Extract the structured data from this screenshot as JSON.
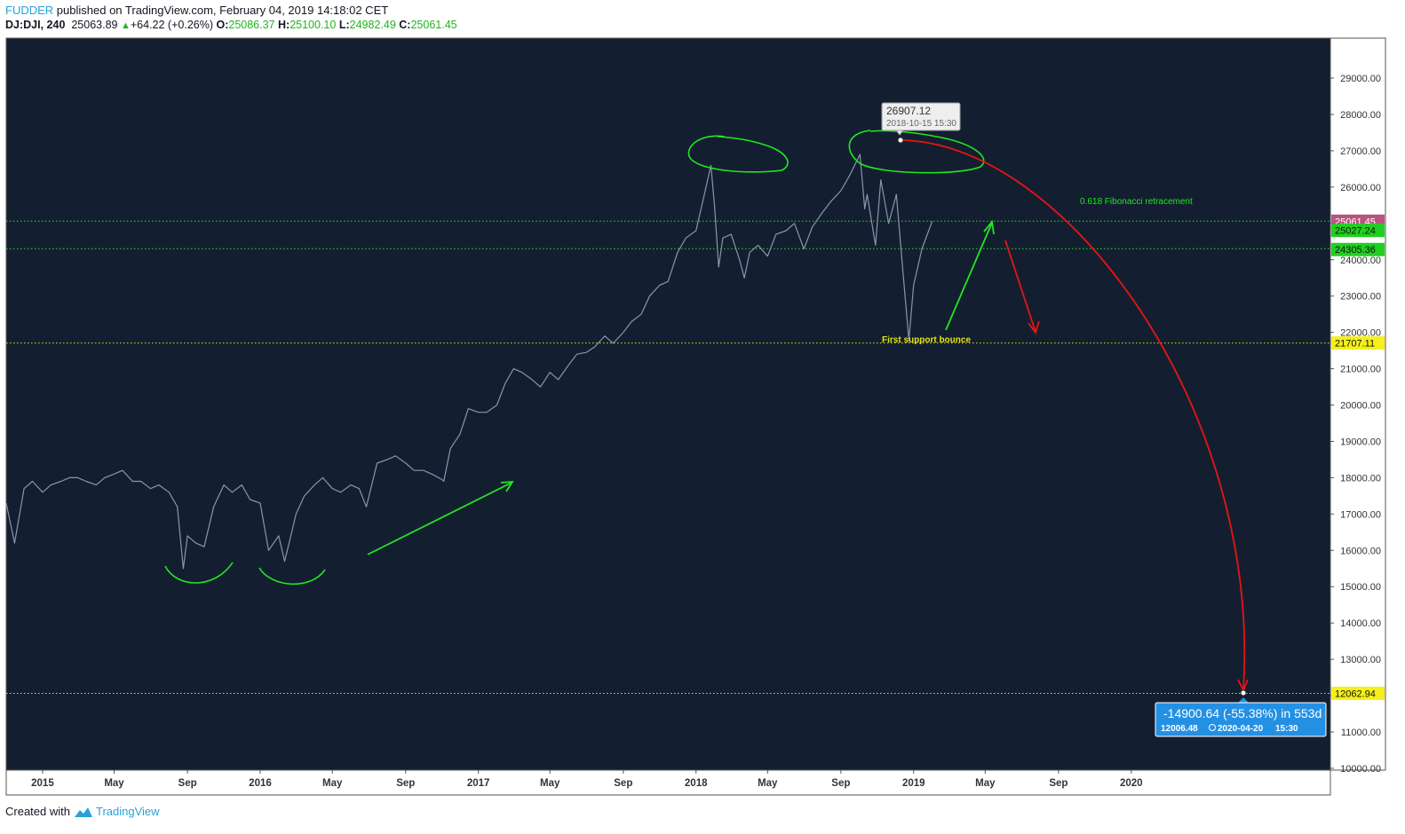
{
  "header": {
    "author": "FUDDER",
    "published_text": "published on TradingView.com, February 04, 2019 14:18:02 CET",
    "symbol": "DJ:DJI, 240",
    "last": "25063.89",
    "change": "+64.22 (+0.26%)",
    "open_label": "O:",
    "open": "25086.37",
    "high_label": "H:",
    "high": "25100.10",
    "low_label": "L:",
    "low": "24982.49",
    "close_label": "C:",
    "close": "25061.45"
  },
  "footer": {
    "created_with": "Created with",
    "brand": "TradingView"
  },
  "colors": {
    "background": "#131f30",
    "price_line": "#8a94ad",
    "green": "#22e622",
    "red": "#e81414",
    "yellow": "#e3e310",
    "label_purple": "#b8557f",
    "label_green": "#20d020",
    "label_yellow": "#f5ef1c",
    "measure_blue": "#2490e4"
  },
  "chart_data": {
    "type": "line",
    "series": [
      {
        "x": [
          "2014-11-01",
          "2014-11-15",
          "2014-12-01",
          "2014-12-15",
          "2015-01-01",
          "2015-01-15",
          "2015-02-01",
          "2015-02-15",
          "2015-03-01",
          "2015-03-15",
          "2015-04-01",
          "2015-04-15",
          "2015-05-01",
          "2015-05-15",
          "2015-06-01",
          "2015-06-15",
          "2015-07-01",
          "2015-07-15",
          "2015-08-01",
          "2015-08-15",
          "2015-08-25",
          "2015-09-01",
          "2015-09-15",
          "2015-09-29",
          "2015-10-15",
          "2015-11-01",
          "2015-11-15",
          "2015-12-01",
          "2015-12-15",
          "2016-01-01",
          "2016-01-15",
          "2016-02-01",
          "2016-02-11",
          "2016-02-20",
          "2016-03-01",
          "2016-03-15",
          "2016-04-01",
          "2016-04-15",
          "2016-05-01",
          "2016-05-15",
          "2016-06-01",
          "2016-06-15",
          "2016-06-27",
          "2016-07-15",
          "2016-08-01",
          "2016-08-15",
          "2016-09-01",
          "2016-09-15",
          "2016-10-01",
          "2016-10-15",
          "2016-11-01",
          "2016-11-04",
          "2016-11-15",
          "2016-12-01",
          "2016-12-15",
          "2017-01-01",
          "2017-01-15",
          "2017-02-01",
          "2017-02-15",
          "2017-03-01",
          "2017-03-15",
          "2017-04-01",
          "2017-04-15",
          "2017-05-01",
          "2017-05-15",
          "2017-06-01",
          "2017-06-15",
          "2017-07-01",
          "2017-07-15",
          "2017-08-01",
          "2017-08-15",
          "2017-09-01",
          "2017-09-15",
          "2017-10-01",
          "2017-10-15",
          "2017-11-01",
          "2017-11-15",
          "2017-12-01",
          "2017-12-15",
          "2018-01-01",
          "2018-01-15",
          "2018-01-26",
          "2018-02-01",
          "2018-02-08",
          "2018-02-15",
          "2018-03-01",
          "2018-03-15",
          "2018-03-23",
          "2018-04-01",
          "2018-04-15",
          "2018-05-01",
          "2018-05-15",
          "2018-06-01",
          "2018-06-15",
          "2018-07-01",
          "2018-07-15",
          "2018-08-01",
          "2018-08-15",
          "2018-09-01",
          "2018-09-15",
          "2018-10-03",
          "2018-10-11",
          "2018-10-15",
          "2018-10-29",
          "2018-11-07",
          "2018-11-20",
          "2018-12-03",
          "2018-12-15",
          "2018-12-24",
          "2019-01-01",
          "2019-01-15",
          "2019-02-01"
        ],
        "y": [
          17300,
          16200,
          17700,
          17900,
          17600,
          17800,
          17900,
          18000,
          18000,
          17900,
          17800,
          18000,
          18100,
          18200,
          17900,
          17900,
          17700,
          17800,
          17600,
          17200,
          15500,
          16400,
          16200,
          16100,
          17200,
          17800,
          17600,
          17800,
          17400,
          17300,
          16000,
          16400,
          15700,
          16300,
          17000,
          17500,
          17800,
          18000,
          17700,
          17600,
          17800,
          17700,
          17200,
          18400,
          18500,
          18600,
          18400,
          18200,
          18200,
          18100,
          17950,
          17900,
          18800,
          19200,
          19900,
          19800,
          19800,
          20000,
          20600,
          21000,
          20900,
          20700,
          20500,
          20900,
          20700,
          21100,
          21400,
          21450,
          21600,
          21900,
          21700,
          22000,
          22300,
          22500,
          23000,
          23300,
          23400,
          24200,
          24600,
          24800,
          25800,
          26600,
          25500,
          23800,
          24600,
          24700,
          24000,
          23500,
          24200,
          24400,
          24100,
          24700,
          24800,
          25000,
          24300,
          24900,
          25300,
          25600,
          25900,
          26300,
          26900,
          25400,
          25800,
          24400,
          26200,
          25000,
          25800,
          23500,
          21792,
          23300,
          24300,
          25061
        ]
      }
    ],
    "x_ticks": [
      "2015",
      "May",
      "Sep",
      "2016",
      "May",
      "Sep",
      "2017",
      "May",
      "Sep",
      "2018",
      "May",
      "Sep",
      "2019",
      "May",
      "Sep",
      "2020"
    ],
    "y_ticks": [
      "29000.00",
      "28000.00",
      "27000.00",
      "26000.00",
      "25000.00",
      "24000.00",
      "23000.00",
      "22000.00",
      "21000.00",
      "20000.00",
      "19000.00",
      "18000.00",
      "17000.00",
      "16000.00",
      "15000.00",
      "14000.00",
      "13000.00",
      "12000.00",
      "11000.00",
      "10000.00"
    ],
    "ylim": [
      9950,
      30100
    ],
    "xlim": [
      "2014-11-01",
      "2020-11-30"
    ],
    "grid": false,
    "horizontal_levels": [
      {
        "value": 25061.45,
        "label": "25061.45",
        "style": "purple",
        "line": "green"
      },
      {
        "value": 25027.24,
        "label": "25027.24",
        "style": "green",
        "line": "none"
      },
      {
        "value": 24305.36,
        "label": "24305.36",
        "style": "green",
        "line": "green"
      },
      {
        "value": 21707.11,
        "label": "21707.11",
        "style": "yellow",
        "line": "yellow"
      },
      {
        "value": 12062.94,
        "label": "12062.94",
        "style": "yellow",
        "line": "yellow"
      }
    ],
    "annotations": {
      "fibonacci_text": "0.618 Fibonacci retracement",
      "support_text": "First support bounce",
      "peak_value": "26907.12",
      "peak_time": "2018-10-15 15:30",
      "measure_main": "-14900.64 (-55.38%) in 553d",
      "measure_price": "12006.48",
      "measure_date": "2020-04-20",
      "measure_time": "15:30"
    }
  }
}
